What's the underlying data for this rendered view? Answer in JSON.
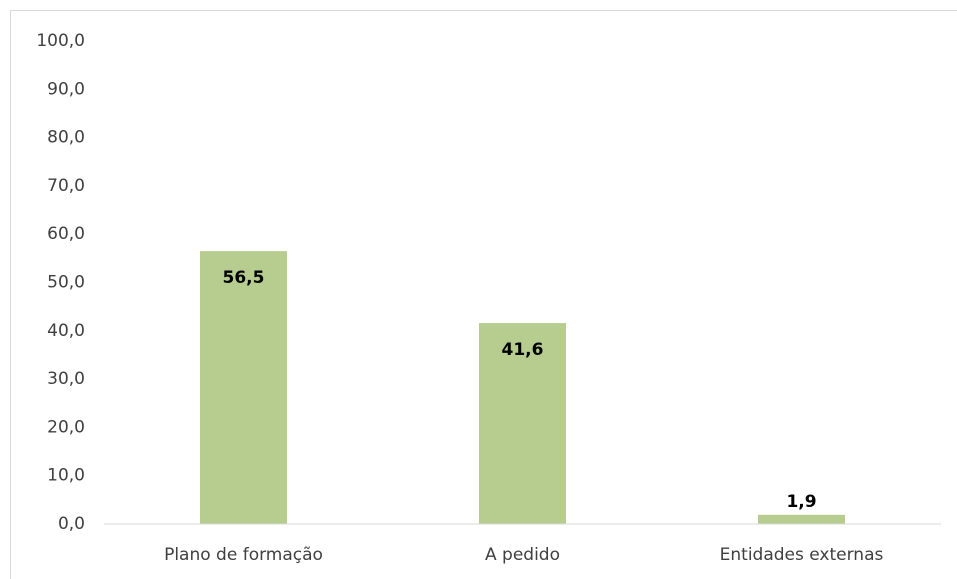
{
  "chart_data": {
    "type": "bar",
    "categories": [
      "Plano de formação",
      "A pedido",
      "Entidades externas"
    ],
    "values": [
      56.5,
      41.6,
      1.9
    ],
    "value_labels": [
      "56,5",
      "41,6",
      "1,9"
    ],
    "color": "#b6cd8f",
    "ylim": [
      0,
      100
    ],
    "yticks": [
      {
        "value": 0,
        "label": "0,0"
      },
      {
        "value": 10,
        "label": "10,0"
      },
      {
        "value": 20,
        "label": "20,0"
      },
      {
        "value": 30,
        "label": "30,0"
      },
      {
        "value": 40,
        "label": "40,0"
      },
      {
        "value": 50,
        "label": "50,0"
      },
      {
        "value": 60,
        "label": "60,0"
      },
      {
        "value": 70,
        "label": "70,0"
      },
      {
        "value": 80,
        "label": "80,0"
      },
      {
        "value": 90,
        "label": "90,0"
      },
      {
        "value": 100,
        "label": "100,0"
      }
    ],
    "grid": false
  }
}
